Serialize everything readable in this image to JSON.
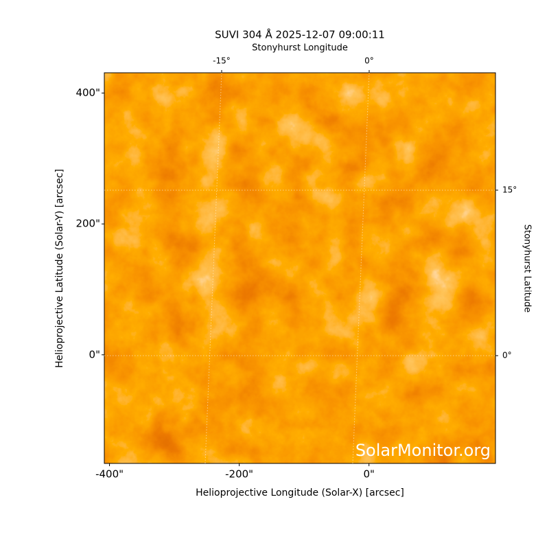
{
  "chart_data": {
    "type": "image",
    "title": "SUVI 304 Å 2025-12-07 09:00:11",
    "xlabel": "Helioprojective Longitude (Solar-X) [arcsec]",
    "ylabel": "Helioprojective Latitude (Solar-Y) [arcsec]",
    "x2label": "Stonyhurst Longitude",
    "y2label": "Stonyhurst Latitude",
    "watermark": "SolarMonitor.org",
    "xlim": [
      -408,
      195
    ],
    "ylim": [
      -166,
      431
    ],
    "xticks": [
      {
        "value": -400,
        "label": "-400\""
      },
      {
        "value": -200,
        "label": "-200\""
      },
      {
        "value": 0,
        "label": "0\""
      }
    ],
    "yticks": [
      {
        "value": 0,
        "label": "0\""
      },
      {
        "value": 200,
        "label": "200\""
      },
      {
        "value": 400,
        "label": "400\""
      }
    ],
    "x2lim": [
      -26.93,
      12.84
    ],
    "x2ticks": [
      {
        "value": -15,
        "label": "-15°"
      },
      {
        "value": 0,
        "label": "0°"
      }
    ],
    "y2lim": [
      -9.77,
      25.64
    ],
    "y2ticks": [
      {
        "value": 0,
        "label": "0°"
      },
      {
        "value": 15,
        "label": "15°"
      }
    ],
    "grid": true
  }
}
